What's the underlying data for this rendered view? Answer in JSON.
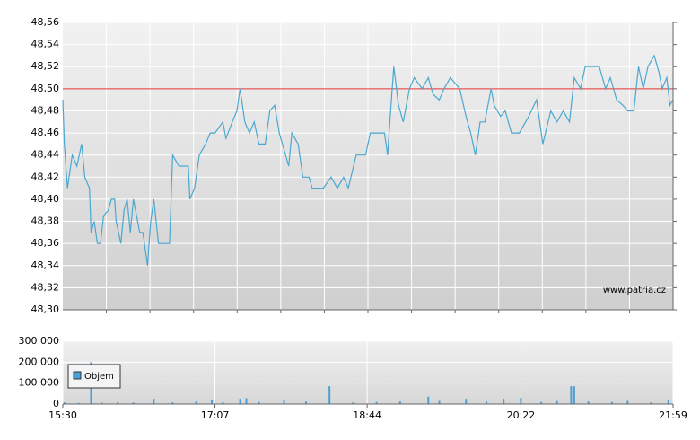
{
  "chart_data": [
    {
      "type": "line",
      "color": "#4aa8d0",
      "watermark": "www.patria.cz",
      "reference_line": {
        "value": 48.5,
        "color": "#e03030"
      },
      "xlim": [
        "15:30",
        "21:59"
      ],
      "ylim": [
        48.3,
        48.56
      ],
      "yticks": [
        {
          "value": 48.3,
          "label": "48,30"
        },
        {
          "value": 48.32,
          "label": "48,32"
        },
        {
          "value": 48.34,
          "label": "48,34"
        },
        {
          "value": 48.36,
          "label": "48,36"
        },
        {
          "value": 48.38,
          "label": "48,38"
        },
        {
          "value": 48.4,
          "label": "48,40"
        },
        {
          "value": 48.42,
          "label": "48,42"
        },
        {
          "value": 48.44,
          "label": "48,44"
        },
        {
          "value": 48.46,
          "label": "48,46"
        },
        {
          "value": 48.48,
          "label": "48,48"
        },
        {
          "value": 48.5,
          "label": "48,50"
        },
        {
          "value": 48.52,
          "label": "48,52"
        },
        {
          "value": 48.54,
          "label": "48,54"
        },
        {
          "value": 48.56,
          "label": "48,56"
        }
      ],
      "x": [
        "15:30",
        "15:31",
        "15:33",
        "15:36",
        "15:39",
        "15:42",
        "15:44",
        "15:47",
        "15:48",
        "15:50",
        "15:52",
        "15:54",
        "15:56",
        "15:59",
        "16:01",
        "16:03",
        "16:04",
        "16:07",
        "16:09",
        "16:11",
        "16:13",
        "16:15",
        "16:19",
        "16:21",
        "16:24",
        "16:26",
        "16:28",
        "16:31",
        "16:34",
        "16:38",
        "16:40",
        "16:44",
        "16:50",
        "16:51",
        "16:54",
        "16:57",
        "17:01",
        "17:04",
        "17:07",
        "17:12",
        "17:14",
        "17:18",
        "17:21",
        "17:23",
        "17:26",
        "17:29",
        "17:32",
        "17:35",
        "17:39",
        "17:42",
        "17:45",
        "17:48",
        "17:52",
        "17:54",
        "17:56",
        "18:00",
        "18:03",
        "18:07",
        "18:09",
        "18:16",
        "18:21",
        "18:25",
        "18:29",
        "18:32",
        "18:37",
        "18:43",
        "18:46",
        "18:55",
        "18:57",
        "18:59",
        "19:01",
        "19:04",
        "19:07",
        "19:11",
        "19:14",
        "19:19",
        "19:23",
        "19:26",
        "19:30",
        "19:33",
        "19:37",
        "19:43",
        "19:47",
        "19:50",
        "19:53",
        "19:56",
        "19:59",
        "20:03",
        "20:05",
        "20:09",
        "20:12",
        "20:16",
        "20:21",
        "20:27",
        "20:32",
        "20:36",
        "20:41",
        "20:45",
        "20:49",
        "20:53",
        "20:56",
        "21:00",
        "21:03",
        "21:12",
        "21:16",
        "21:19",
        "21:23",
        "21:27",
        "21:30",
        "21:34",
        "21:37",
        "21:40",
        "21:43",
        "21:47",
        "21:50",
        "21:52",
        "21:55",
        "21:57",
        "21:59"
      ],
      "values": [
        48.49,
        48.45,
        48.41,
        48.44,
        48.43,
        48.45,
        48.42,
        48.41,
        48.37,
        48.38,
        48.36,
        48.36,
        48.385,
        48.39,
        48.4,
        48.4,
        48.38,
        48.36,
        48.39,
        48.4,
        48.37,
        48.4,
        48.37,
        48.37,
        48.34,
        48.38,
        48.4,
        48.36,
        48.36,
        48.36,
        48.44,
        48.43,
        48.43,
        48.4,
        48.41,
        48.44,
        48.45,
        48.46,
        48.46,
        48.47,
        48.455,
        48.47,
        48.48,
        48.5,
        48.47,
        48.46,
        48.47,
        48.45,
        48.45,
        48.48,
        48.485,
        48.46,
        48.44,
        48.43,
        48.46,
        48.45,
        48.42,
        48.42,
        48.41,
        48.41,
        48.42,
        48.41,
        48.42,
        48.41,
        48.44,
        48.44,
        48.46,
        48.46,
        48.44,
        48.48,
        48.52,
        48.485,
        48.47,
        48.5,
        48.51,
        48.5,
        48.51,
        48.495,
        48.49,
        48.5,
        48.51,
        48.5,
        48.475,
        48.46,
        48.44,
        48.47,
        48.47,
        48.5,
        48.485,
        48.475,
        48.48,
        48.46,
        48.46,
        48.475,
        48.49,
        48.45,
        48.48,
        48.47,
        48.48,
        48.47,
        48.51,
        48.5,
        48.52,
        48.52,
        48.5,
        48.51,
        48.49,
        48.485,
        48.48,
        48.48,
        48.52,
        48.5,
        48.52,
        48.53,
        48.515,
        48.5,
        48.51,
        48.485,
        48.49
      ]
    },
    {
      "type": "bar",
      "xlim": [
        "15:30",
        "21:59"
      ],
      "xticks": [
        "15:30",
        "17:07",
        "18:44",
        "20:22",
        "21:59"
      ],
      "ylim": [
        0,
        300000
      ],
      "yticks": [
        0,
        {
          "value": 100000,
          "label": "100 000"
        },
        {
          "value": 200000,
          "label": "200 000"
        },
        {
          "value": 300000,
          "label": "300 000"
        }
      ],
      "x": [
        "15:31",
        "15:40",
        "15:48",
        "15:55",
        "16:05",
        "16:15",
        "16:28",
        "16:40",
        "16:55",
        "17:05",
        "17:12",
        "17:23",
        "17:27",
        "17:35",
        "17:51",
        "18:05",
        "18:20",
        "18:35",
        "18:50",
        "19:05",
        "19:23",
        "19:30",
        "19:47",
        "20:00",
        "20:11",
        "20:22",
        "20:35",
        "20:45",
        "20:54",
        "20:56",
        "21:05",
        "21:20",
        "21:30",
        "21:45",
        "21:56"
      ],
      "series": [
        {
          "name": "Objem",
          "color": "#4a9fd4",
          "values": [
            8000,
            5000,
            200000,
            6000,
            10000,
            7000,
            25000,
            8000,
            12000,
            20000,
            9000,
            25000,
            28000,
            10000,
            22000,
            12000,
            85000,
            8000,
            10000,
            12000,
            35000,
            15000,
            25000,
            12000,
            25000,
            30000,
            10000,
            15000,
            85000,
            85000,
            12000,
            10000,
            15000,
            8000,
            20000
          ]
        }
      ]
    }
  ]
}
